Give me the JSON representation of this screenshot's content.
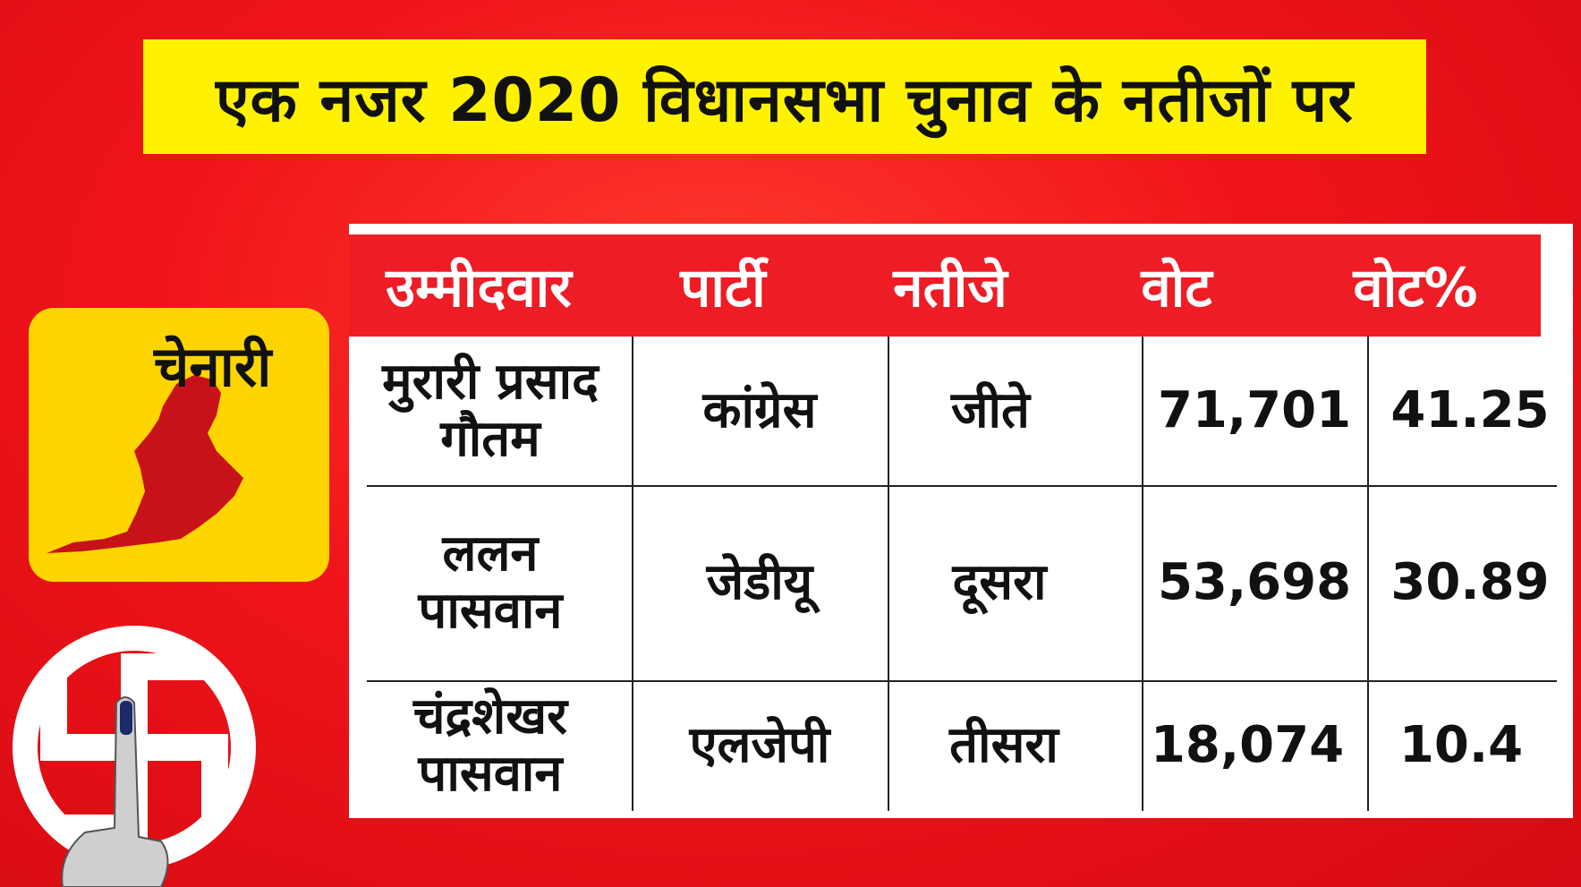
{
  "title": "एक नजर 2020 विधानसभा चुनाव के नतीजों पर",
  "constituency": "चेनारी",
  "table": {
    "headers": [
      "उम्मीदवार",
      "पार्टी",
      "नतीजे",
      "वोट",
      "वोट%"
    ],
    "rows": [
      {
        "candidate": "मुरारी प्रसाद गौतम",
        "party": "कांग्रेस",
        "result": "जीते",
        "votes": "71,701",
        "vote_pct": "41.25"
      },
      {
        "candidate": "ललन पासवान",
        "party": "जेडीयू",
        "result": "दूसरा",
        "votes": "53,698",
        "vote_pct": "30.89"
      },
      {
        "candidate": "चंद्रशेखर पासवान",
        "party": "एलजेपी",
        "result": "तीसरा",
        "votes": "18,074",
        "vote_pct": "10.4"
      }
    ]
  },
  "icons": {
    "map": "constituency-map-icon",
    "election_symbol": "election-symbol-icon"
  },
  "colors": {
    "background": "#e8141b",
    "title_bg": "#fff200",
    "card_bg": "#ffd500",
    "header_bg": "#ee1c25",
    "map_fill": "#c8121a"
  }
}
